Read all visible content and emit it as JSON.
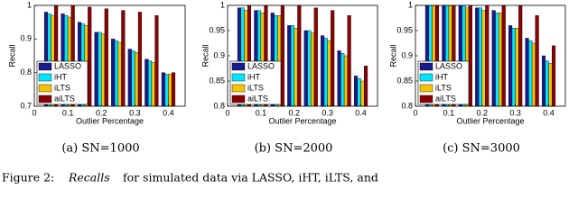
{
  "chart_data": [
    {
      "type": "bar",
      "caption": "(a) SN=1000",
      "y_label": "Recall",
      "x_label": "Outlier Percentage",
      "x": [
        0.05,
        0.1,
        0.15,
        0.2,
        0.25,
        0.3,
        0.35,
        0.4
      ],
      "xlim": [
        0,
        0.45
      ],
      "xticks": [
        0,
        0.1,
        0.2,
        0.3,
        0.4
      ],
      "ylim": [
        0.7,
        1
      ],
      "yticks": [
        0.7,
        0.8,
        0.9,
        1
      ],
      "legend": "lower left",
      "series": [
        {
          "name": "LASSO",
          "color": "#1a1a8c",
          "values": [
            0.98,
            0.975,
            0.95,
            0.92,
            0.9,
            0.87,
            0.84,
            0.8
          ]
        },
        {
          "name": "iHT",
          "color": "#00e5ff",
          "values": [
            0.975,
            0.97,
            0.945,
            0.92,
            0.895,
            0.865,
            0.835,
            0.795
          ]
        },
        {
          "name": "iLTS",
          "color": "#f5c400",
          "values": [
            0.97,
            0.965,
            0.94,
            0.915,
            0.89,
            0.86,
            0.83,
            0.795
          ]
        },
        {
          "name": "aiLTS",
          "color": "#8b0000",
          "values": [
            1,
            1,
            0.995,
            0.99,
            0.985,
            0.98,
            0.97,
            0.8
          ]
        }
      ]
    },
    {
      "type": "bar",
      "caption": "(b) SN=2000",
      "y_label": "Recall",
      "x_label": "Outlier Percentage",
      "x": [
        0.05,
        0.1,
        0.15,
        0.2,
        0.25,
        0.3,
        0.35,
        0.4
      ],
      "xlim": [
        0,
        0.45
      ],
      "xticks": [
        0,
        0.1,
        0.2,
        0.3,
        0.4
      ],
      "ylim": [
        0.8,
        1
      ],
      "yticks": [
        0.8,
        0.85,
        0.9,
        0.95,
        1
      ],
      "legend": "lower left",
      "series": [
        {
          "name": "LASSO",
          "color": "#1a1a8c",
          "values": [
            0.995,
            0.99,
            0.985,
            0.96,
            0.95,
            0.94,
            0.91,
            0.86
          ]
        },
        {
          "name": "iHT",
          "color": "#00e5ff",
          "values": [
            0.995,
            0.99,
            0.98,
            0.96,
            0.95,
            0.935,
            0.905,
            0.855
          ]
        },
        {
          "name": "iLTS",
          "color": "#f5c400",
          "values": [
            0.99,
            0.985,
            0.98,
            0.955,
            0.945,
            0.93,
            0.9,
            0.85
          ]
        },
        {
          "name": "aiLTS",
          "color": "#8b0000",
          "values": [
            1,
            1,
            1,
            1,
            0.995,
            0.99,
            0.98,
            0.88
          ]
        }
      ]
    },
    {
      "type": "bar",
      "caption": "(c) SN=3000",
      "y_label": "Recall",
      "x_label": "Outlier Percentage",
      "x": [
        0.05,
        0.1,
        0.15,
        0.2,
        0.25,
        0.3,
        0.35,
        0.4
      ],
      "xlim": [
        0,
        0.45
      ],
      "xticks": [
        0,
        0.1,
        0.2,
        0.3,
        0.4
      ],
      "ylim": [
        0.8,
        1
      ],
      "yticks": [
        0.8,
        0.85,
        0.9,
        0.95,
        1
      ],
      "legend": "lower left",
      "series": [
        {
          "name": "LASSO",
          "color": "#1a1a8c",
          "values": [
            1,
            1,
            1,
            0.995,
            0.99,
            0.96,
            0.935,
            0.9
          ]
        },
        {
          "name": "iHT",
          "color": "#00e5ff",
          "values": [
            1,
            1,
            1,
            0.995,
            0.985,
            0.955,
            0.93,
            0.89
          ]
        },
        {
          "name": "iLTS",
          "color": "#f5c400",
          "values": [
            1,
            1,
            0.995,
            0.99,
            0.985,
            0.955,
            0.925,
            0.885
          ]
        },
        {
          "name": "aiLTS",
          "color": "#8b0000",
          "values": [
            1,
            1,
            1,
            1,
            1,
            1,
            0.98,
            0.92
          ]
        }
      ]
    }
  ],
  "figure_caption": {
    "label": "Figure 2:",
    "emphasis": "Recalls",
    "text": "for simulated data via LASSO, iHT, iLTS, and"
  }
}
